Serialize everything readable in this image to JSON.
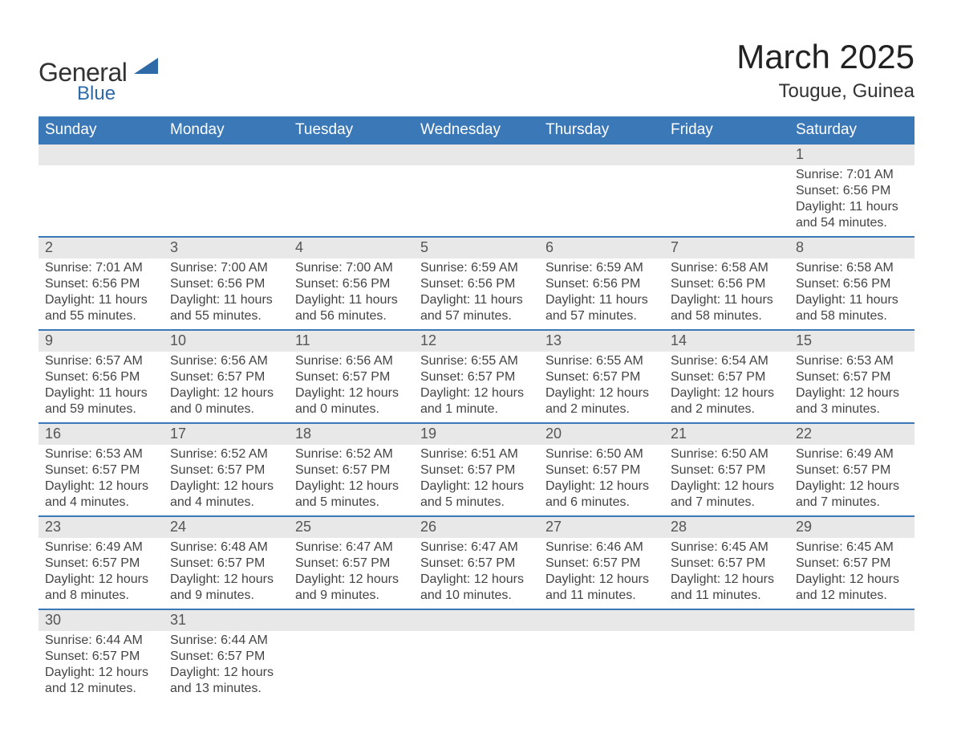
{
  "logo": {
    "main": "General",
    "sub": "Blue",
    "sail_color": "#2f6aa8"
  },
  "title": "March 2025",
  "location": "Tougue, Guinea",
  "colors": {
    "header_blue": "#3b78b8",
    "day_bar": "#e8e8e8",
    "background": "#ffffff"
  },
  "weekdays": [
    "Sunday",
    "Monday",
    "Tuesday",
    "Wednesday",
    "Thursday",
    "Friday",
    "Saturday"
  ],
  "weeks": [
    {
      "days": [
        null,
        null,
        null,
        null,
        null,
        null,
        {
          "n": "1",
          "sunrise": "7:01 AM",
          "sunset": "6:56 PM",
          "daylight": "11 hours and 54 minutes."
        }
      ]
    },
    {
      "days": [
        {
          "n": "2",
          "sunrise": "7:01 AM",
          "sunset": "6:56 PM",
          "daylight": "11 hours and 55 minutes."
        },
        {
          "n": "3",
          "sunrise": "7:00 AM",
          "sunset": "6:56 PM",
          "daylight": "11 hours and 55 minutes."
        },
        {
          "n": "4",
          "sunrise": "7:00 AM",
          "sunset": "6:56 PM",
          "daylight": "11 hours and 56 minutes."
        },
        {
          "n": "5",
          "sunrise": "6:59 AM",
          "sunset": "6:56 PM",
          "daylight": "11 hours and 57 minutes."
        },
        {
          "n": "6",
          "sunrise": "6:59 AM",
          "sunset": "6:56 PM",
          "daylight": "11 hours and 57 minutes."
        },
        {
          "n": "7",
          "sunrise": "6:58 AM",
          "sunset": "6:56 PM",
          "daylight": "11 hours and 58 minutes."
        },
        {
          "n": "8",
          "sunrise": "6:58 AM",
          "sunset": "6:56 PM",
          "daylight": "11 hours and 58 minutes."
        }
      ]
    },
    {
      "days": [
        {
          "n": "9",
          "sunrise": "6:57 AM",
          "sunset": "6:56 PM",
          "daylight": "11 hours and 59 minutes."
        },
        {
          "n": "10",
          "sunrise": "6:56 AM",
          "sunset": "6:57 PM",
          "daylight": "12 hours and 0 minutes."
        },
        {
          "n": "11",
          "sunrise": "6:56 AM",
          "sunset": "6:57 PM",
          "daylight": "12 hours and 0 minutes."
        },
        {
          "n": "12",
          "sunrise": "6:55 AM",
          "sunset": "6:57 PM",
          "daylight": "12 hours and 1 minute."
        },
        {
          "n": "13",
          "sunrise": "6:55 AM",
          "sunset": "6:57 PM",
          "daylight": "12 hours and 2 minutes."
        },
        {
          "n": "14",
          "sunrise": "6:54 AM",
          "sunset": "6:57 PM",
          "daylight": "12 hours and 2 minutes."
        },
        {
          "n": "15",
          "sunrise": "6:53 AM",
          "sunset": "6:57 PM",
          "daylight": "12 hours and 3 minutes."
        }
      ]
    },
    {
      "days": [
        {
          "n": "16",
          "sunrise": "6:53 AM",
          "sunset": "6:57 PM",
          "daylight": "12 hours and 4 minutes."
        },
        {
          "n": "17",
          "sunrise": "6:52 AM",
          "sunset": "6:57 PM",
          "daylight": "12 hours and 4 minutes."
        },
        {
          "n": "18",
          "sunrise": "6:52 AM",
          "sunset": "6:57 PM",
          "daylight": "12 hours and 5 minutes."
        },
        {
          "n": "19",
          "sunrise": "6:51 AM",
          "sunset": "6:57 PM",
          "daylight": "12 hours and 5 minutes."
        },
        {
          "n": "20",
          "sunrise": "6:50 AM",
          "sunset": "6:57 PM",
          "daylight": "12 hours and 6 minutes."
        },
        {
          "n": "21",
          "sunrise": "6:50 AM",
          "sunset": "6:57 PM",
          "daylight": "12 hours and 7 minutes."
        },
        {
          "n": "22",
          "sunrise": "6:49 AM",
          "sunset": "6:57 PM",
          "daylight": "12 hours and 7 minutes."
        }
      ]
    },
    {
      "days": [
        {
          "n": "23",
          "sunrise": "6:49 AM",
          "sunset": "6:57 PM",
          "daylight": "12 hours and 8 minutes."
        },
        {
          "n": "24",
          "sunrise": "6:48 AM",
          "sunset": "6:57 PM",
          "daylight": "12 hours and 9 minutes."
        },
        {
          "n": "25",
          "sunrise": "6:47 AM",
          "sunset": "6:57 PM",
          "daylight": "12 hours and 9 minutes."
        },
        {
          "n": "26",
          "sunrise": "6:47 AM",
          "sunset": "6:57 PM",
          "daylight": "12 hours and 10 minutes."
        },
        {
          "n": "27",
          "sunrise": "6:46 AM",
          "sunset": "6:57 PM",
          "daylight": "12 hours and 11 minutes."
        },
        {
          "n": "28",
          "sunrise": "6:45 AM",
          "sunset": "6:57 PM",
          "daylight": "12 hours and 11 minutes."
        },
        {
          "n": "29",
          "sunrise": "6:45 AM",
          "sunset": "6:57 PM",
          "daylight": "12 hours and 12 minutes."
        }
      ]
    },
    {
      "days": [
        {
          "n": "30",
          "sunrise": "6:44 AM",
          "sunset": "6:57 PM",
          "daylight": "12 hours and 12 minutes."
        },
        {
          "n": "31",
          "sunrise": "6:44 AM",
          "sunset": "6:57 PM",
          "daylight": "12 hours and 13 minutes."
        },
        null,
        null,
        null,
        null,
        null
      ]
    }
  ],
  "labels": {
    "sunrise": "Sunrise: ",
    "sunset": "Sunset: ",
    "daylight": "Daylight: "
  }
}
